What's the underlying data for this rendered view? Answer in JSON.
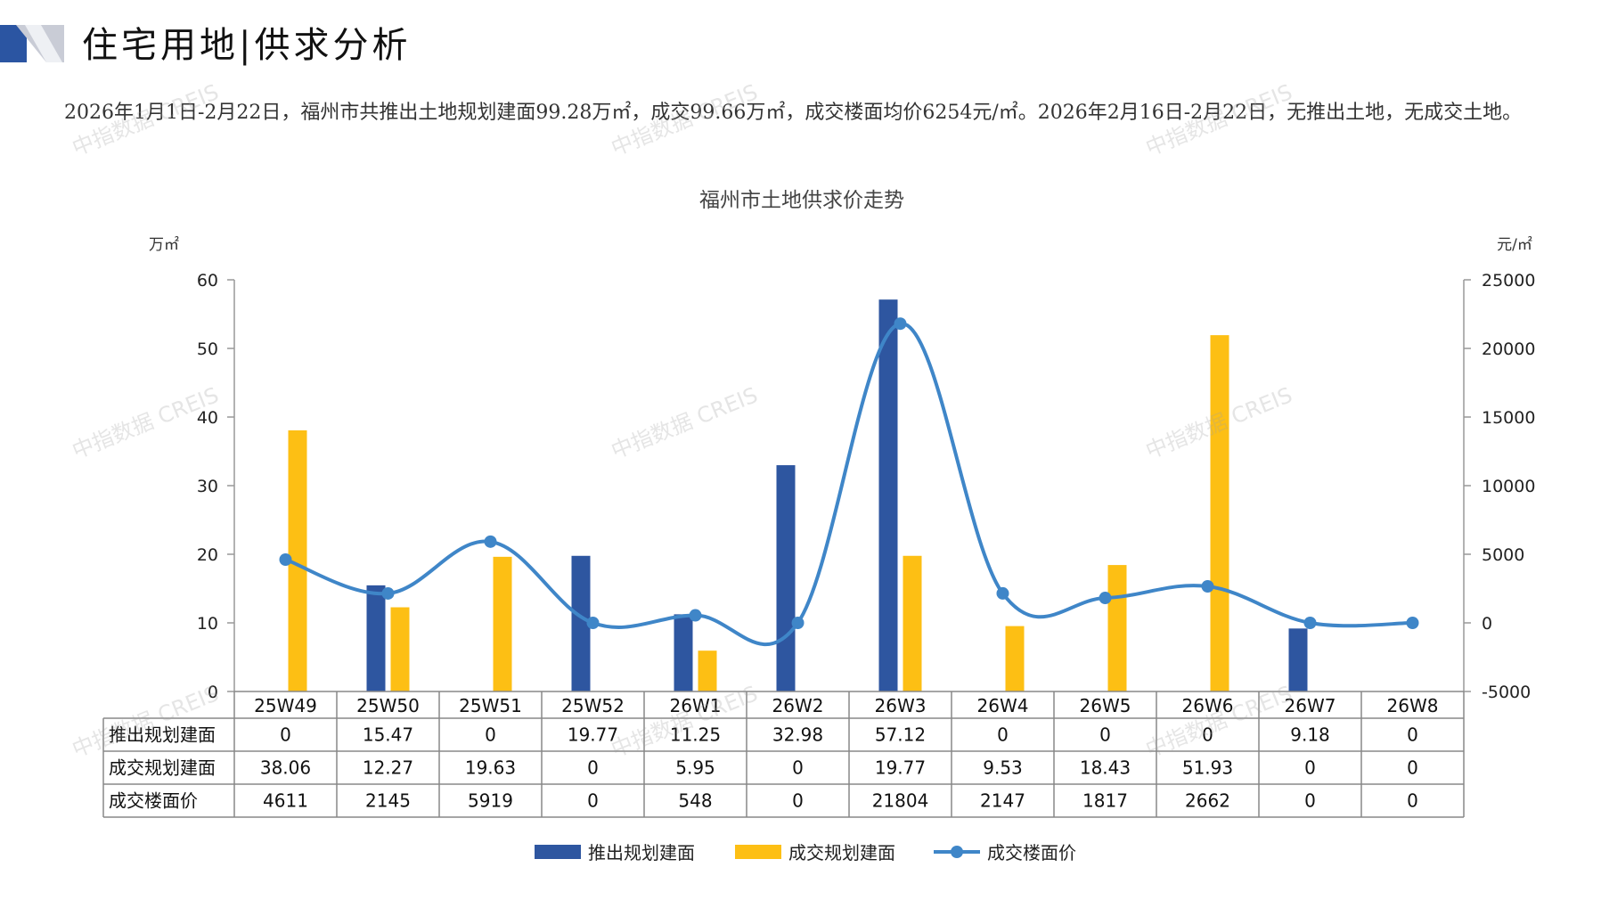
{
  "page": {
    "title": "住宅用地|供求分析",
    "summary": "2026年1月1日-2月22日，福州市共推出土地规划建面99.28万㎡，成交99.66万㎡，成交楼面均价6254元/㎡。2026年2月16日-2月22日，无推出土地，无成交土地。",
    "watermark": "中指数据 CREIS",
    "colors": {
      "accent_dark": "#2b55a2",
      "accent_light": "#bfc3cf"
    }
  },
  "chart_data": {
    "type": "bar",
    "title": "福州市土地供求价走势",
    "y_left_unit": "万㎡",
    "y_right_unit": "元/㎡",
    "categories": [
      "25W49",
      "25W50",
      "25W51",
      "25W52",
      "26W1",
      "26W2",
      "26W3",
      "26W4",
      "26W5",
      "26W6",
      "26W7",
      "26W8"
    ],
    "y_left_ticks": [
      "0",
      "10",
      "20",
      "30",
      "40",
      "50",
      "60"
    ],
    "y_right_ticks": [
      "-5000",
      "0",
      "5000",
      "10000",
      "15000",
      "20000",
      "25000"
    ],
    "ylim_left": [
      0,
      60
    ],
    "ylim_right": [
      -5000,
      25000
    ],
    "series": [
      {
        "name": "推出规划建面",
        "type": "bar",
        "axis": "left",
        "color": "#2e56a0",
        "values": [
          0,
          15.47,
          0,
          19.77,
          11.25,
          32.98,
          57.12,
          0,
          0,
          0,
          9.18,
          0
        ],
        "labels": [
          "0",
          "15.47",
          "0",
          "19.77",
          "11.25",
          "32.98",
          "57.12",
          "0",
          "0",
          "0",
          "9.18",
          "0"
        ]
      },
      {
        "name": "成交规划建面",
        "type": "bar",
        "axis": "left",
        "color": "#fdbf14",
        "values": [
          38.06,
          12.27,
          19.63,
          0,
          5.95,
          0,
          19.77,
          9.53,
          18.43,
          51.93,
          0,
          0
        ],
        "labels": [
          "38.06",
          "12.27",
          "19.63",
          "0",
          "5.95",
          "0",
          "19.77",
          "9.53",
          "18.43",
          "51.93",
          "0",
          "0"
        ]
      },
      {
        "name": "成交楼面价",
        "type": "line",
        "axis": "right",
        "color": "#3f86c8",
        "values": [
          4611,
          2145,
          5919,
          0,
          548,
          0,
          21804,
          2147,
          1817,
          2662,
          0,
          0
        ],
        "labels": [
          "4611",
          "2145",
          "5919",
          "0",
          "548",
          "0",
          "21804",
          "2147",
          "1817",
          "2662",
          "0",
          "0"
        ]
      }
    ],
    "legend_position": "bottom"
  }
}
